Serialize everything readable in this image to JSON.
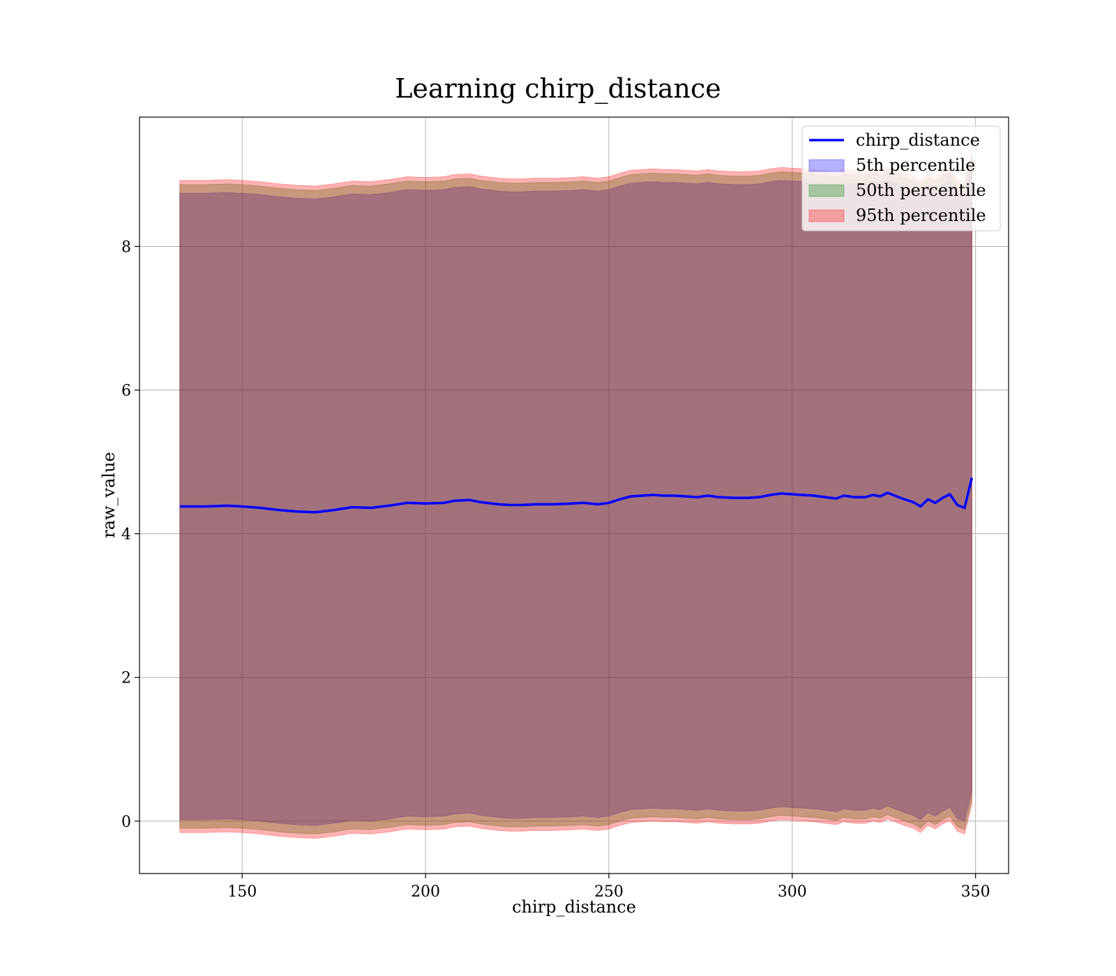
{
  "chart_data": {
    "type": "area",
    "title": "Learning chirp_distance",
    "xlabel": "chirp_distance",
    "ylabel": "raw_value",
    "xlim": [
      122,
      359
    ],
    "ylim": [
      -0.73,
      9.8
    ],
    "xticks": [
      150,
      200,
      250,
      300,
      350
    ],
    "yticks": [
      0,
      2,
      4,
      6,
      8
    ],
    "grid": true,
    "legend_position": "top-right",
    "x": [
      133,
      140,
      146,
      150,
      155,
      160,
      165,
      170,
      175,
      180,
      185,
      190,
      195,
      200,
      205,
      208,
      212,
      215,
      220,
      223,
      226,
      230,
      235,
      240,
      243,
      247,
      250,
      253,
      256,
      259,
      262,
      265,
      268,
      271,
      274,
      277,
      280,
      284,
      288,
      291,
      294,
      297,
      300,
      303,
      306,
      309,
      312,
      314,
      317,
      320,
      322,
      324,
      326,
      328,
      330,
      333,
      335,
      337,
      339,
      341,
      343,
      345,
      347,
      349
    ],
    "series": [
      {
        "name": "chirp_distance",
        "kind": "line",
        "color": "#0000ff",
        "values": [
          4.38,
          4.38,
          4.39,
          4.38,
          4.36,
          4.33,
          4.31,
          4.3,
          4.33,
          4.37,
          4.36,
          4.39,
          4.43,
          4.42,
          4.43,
          4.46,
          4.47,
          4.44,
          4.41,
          4.4,
          4.4,
          4.41,
          4.41,
          4.42,
          4.43,
          4.41,
          4.43,
          4.48,
          4.52,
          4.53,
          4.54,
          4.53,
          4.53,
          4.52,
          4.51,
          4.53,
          4.51,
          4.5,
          4.5,
          4.51,
          4.54,
          4.56,
          4.55,
          4.54,
          4.53,
          4.51,
          4.49,
          4.53,
          4.51,
          4.51,
          4.54,
          4.52,
          4.57,
          4.53,
          4.49,
          4.44,
          4.38,
          4.48,
          4.43,
          4.5,
          4.55,
          4.4,
          4.36,
          4.78
        ]
      },
      {
        "name": "5th percentile",
        "kind": "band",
        "color": "#0000ff",
        "lower": [
          0.02,
          0.02,
          0.03,
          0.02,
          0.0,
          -0.03,
          -0.05,
          -0.06,
          -0.03,
          0.01,
          0.0,
          0.03,
          0.07,
          0.06,
          0.07,
          0.1,
          0.11,
          0.08,
          0.05,
          0.04,
          0.04,
          0.05,
          0.05,
          0.06,
          0.07,
          0.05,
          0.07,
          0.12,
          0.16,
          0.17,
          0.18,
          0.17,
          0.17,
          0.16,
          0.15,
          0.17,
          0.15,
          0.14,
          0.14,
          0.15,
          0.18,
          0.2,
          0.19,
          0.18,
          0.17,
          0.15,
          0.13,
          0.17,
          0.15,
          0.15,
          0.18,
          0.16,
          0.21,
          0.17,
          0.13,
          0.08,
          0.02,
          0.12,
          0.07,
          0.14,
          0.19,
          0.04,
          0.0,
          0.42
        ],
        "upper": [
          8.74,
          8.74,
          8.75,
          8.74,
          8.72,
          8.69,
          8.67,
          8.66,
          8.69,
          8.73,
          8.72,
          8.75,
          8.79,
          8.78,
          8.79,
          8.82,
          8.83,
          8.8,
          8.77,
          8.76,
          8.76,
          8.77,
          8.77,
          8.78,
          8.79,
          8.77,
          8.79,
          8.84,
          8.88,
          8.89,
          8.9,
          8.89,
          8.89,
          8.88,
          8.87,
          8.89,
          8.87,
          8.86,
          8.86,
          8.87,
          8.9,
          8.92,
          8.91,
          8.9,
          8.89,
          8.87,
          8.85,
          8.89,
          8.87,
          8.87,
          8.9,
          8.88,
          8.93,
          8.89,
          8.85,
          8.8,
          8.74,
          8.84,
          8.79,
          8.86,
          8.91,
          8.76,
          8.72,
          9.14
        ]
      },
      {
        "name": "50th percentile",
        "kind": "band",
        "color": "#008000",
        "lower": [
          -0.1,
          -0.1,
          -0.09,
          -0.1,
          -0.12,
          -0.15,
          -0.17,
          -0.18,
          -0.15,
          -0.11,
          -0.12,
          -0.09,
          -0.05,
          -0.06,
          -0.05,
          -0.02,
          -0.01,
          -0.04,
          -0.07,
          -0.08,
          -0.08,
          -0.07,
          -0.07,
          -0.06,
          -0.05,
          -0.07,
          -0.05,
          0.0,
          0.04,
          0.05,
          0.06,
          0.05,
          0.05,
          0.04,
          0.03,
          0.05,
          0.03,
          0.02,
          0.02,
          0.03,
          0.06,
          0.08,
          0.07,
          0.06,
          0.05,
          0.03,
          0.01,
          0.05,
          0.03,
          0.03,
          0.06,
          0.04,
          0.09,
          0.05,
          0.01,
          -0.04,
          -0.1,
          0.0,
          -0.05,
          0.02,
          0.07,
          -0.08,
          -0.12,
          0.3
        ],
        "upper": [
          8.86,
          8.86,
          8.87,
          8.86,
          8.84,
          8.81,
          8.79,
          8.78,
          8.81,
          8.85,
          8.84,
          8.87,
          8.91,
          8.9,
          8.91,
          8.94,
          8.95,
          8.92,
          8.89,
          8.88,
          8.88,
          8.89,
          8.89,
          8.9,
          8.91,
          8.89,
          8.91,
          8.96,
          9.0,
          9.01,
          9.02,
          9.01,
          9.01,
          9.0,
          8.99,
          9.01,
          8.99,
          8.98,
          8.98,
          8.99,
          9.02,
          9.04,
          9.03,
          9.02,
          9.01,
          8.99,
          8.97,
          9.01,
          8.99,
          8.99,
          9.02,
          9.0,
          9.05,
          9.01,
          8.97,
          8.92,
          8.86,
          8.96,
          8.91,
          8.98,
          9.03,
          8.88,
          8.84,
          9.26
        ]
      },
      {
        "name": "95th percentile",
        "kind": "band",
        "color": "#ff0000",
        "lower": [
          -0.16,
          -0.16,
          -0.15,
          -0.16,
          -0.18,
          -0.21,
          -0.23,
          -0.24,
          -0.21,
          -0.17,
          -0.18,
          -0.15,
          -0.11,
          -0.12,
          -0.11,
          -0.08,
          -0.07,
          -0.1,
          -0.13,
          -0.14,
          -0.14,
          -0.13,
          -0.13,
          -0.12,
          -0.11,
          -0.13,
          -0.11,
          -0.06,
          -0.02,
          -0.01,
          0.0,
          -0.01,
          -0.01,
          -0.02,
          -0.03,
          -0.01,
          -0.03,
          -0.04,
          -0.04,
          -0.03,
          0.0,
          0.02,
          0.01,
          0.0,
          -0.01,
          -0.03,
          -0.05,
          -0.01,
          -0.03,
          -0.03,
          0.0,
          -0.02,
          0.03,
          -0.01,
          -0.05,
          -0.1,
          -0.16,
          -0.06,
          -0.11,
          -0.04,
          0.01,
          -0.14,
          -0.18,
          0.24
        ],
        "upper": [
          8.92,
          8.92,
          8.93,
          8.92,
          8.9,
          8.87,
          8.85,
          8.84,
          8.87,
          8.91,
          8.9,
          8.93,
          8.97,
          8.96,
          8.97,
          9.0,
          9.01,
          8.98,
          8.95,
          8.94,
          8.94,
          8.95,
          8.95,
          8.96,
          8.97,
          8.95,
          8.97,
          9.02,
          9.06,
          9.07,
          9.08,
          9.07,
          9.07,
          9.06,
          9.05,
          9.07,
          9.05,
          9.04,
          9.04,
          9.05,
          9.08,
          9.1,
          9.09,
          9.08,
          9.07,
          9.05,
          9.03,
          9.07,
          9.05,
          9.05,
          9.08,
          9.06,
          9.11,
          9.07,
          9.03,
          8.98,
          8.92,
          9.02,
          8.97,
          9.04,
          9.09,
          8.94,
          8.9,
          9.32
        ]
      }
    ]
  }
}
